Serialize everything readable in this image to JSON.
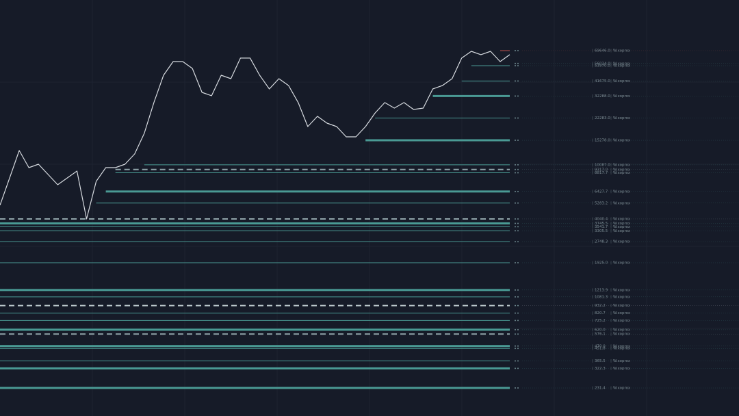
{
  "chart_data": {
    "type": "line",
    "log_scale": true,
    "ylim": [
      144,
      164000
    ],
    "color": "#d7dbe0",
    "level_color": "#4a9a94",
    "level_tag": "W.xoprox",
    "values": [
      5093,
      8091,
      12850,
      9616,
      10190,
      8570,
      7203,
      8091,
      9079,
      4037,
      7634,
      9616,
      9616,
      10190,
      12130,
      17170,
      28910,
      45920,
      57880,
      57880,
      51540,
      34390,
      32460,
      45920,
      43330,
      61370,
      61370,
      45920,
      36410,
      43330,
      38610,
      28910,
      19270,
      22910,
      20420,
      19270,
      16200,
      16200,
      19270,
      24270,
      28910,
      26340,
      28910,
      25740,
      26340,
      36410,
      38610,
      43330,
      61370,
      68870,
      65010,
      68870,
      57880,
      65010
    ],
    "levels": [
      {
        "value": 69646,
        "label": "69646.0",
        "start": 52,
        "style": "solid",
        "color": "#c0504d"
      },
      {
        "value": 56024,
        "label": "56024.0",
        "start": 53,
        "style": "solid",
        "color": "#4a9a94"
      },
      {
        "value": 53970,
        "label": "53970.0",
        "start": 49,
        "style": "solid",
        "color": "#4a9a94"
      },
      {
        "value": 41675,
        "label": "41675.0",
        "start": 48,
        "style": "solid",
        "color": "#4a9a94"
      },
      {
        "value": 32288,
        "label": "32288.0",
        "start": 45,
        "style": "thick",
        "color": "#4a9a94"
      },
      {
        "value": 22283,
        "label": "22283.0",
        "start": 39,
        "style": "solid",
        "color": "#4a9a94"
      },
      {
        "value": 15278,
        "label": "15278.0",
        "start": 38,
        "style": "thick",
        "color": "#4a9a94"
      },
      {
        "value": 10087,
        "label": "10087.0",
        "start": 15,
        "style": "solid",
        "color": "#4a9a94"
      },
      {
        "value": 9317,
        "label": "9317.0",
        "start": 12,
        "style": "dashed",
        "color": "#8fa3a8"
      },
      {
        "value": 8817.7,
        "label": "8817.7",
        "start": 12,
        "style": "solid",
        "color": "#4a9a94"
      },
      {
        "value": 6427.7,
        "label": "6427.7",
        "start": 11,
        "style": "thick",
        "color": "#4a9a94"
      },
      {
        "value": 5283.2,
        "label": "5283.2",
        "start": 10,
        "style": "solid",
        "color": "#4a9a94"
      },
      {
        "value": 4040.4,
        "label": "4040.4",
        "start": 0,
        "style": "dashed",
        "color": "#8fa3a8"
      },
      {
        "value": 3745.5,
        "label": "3745.5",
        "start": 0,
        "style": "thick",
        "color": "#4a9a94"
      },
      {
        "value": 3541.7,
        "label": "3541.7",
        "start": 0,
        "style": "solid",
        "color": "#4a9a94"
      },
      {
        "value": 3305.5,
        "label": "3305.5",
        "start": 0,
        "style": "solid",
        "color": "#4a9a94"
      },
      {
        "value": 2748.3,
        "label": "2748.3",
        "start": 0,
        "style": "solid",
        "color": "#4a9a94"
      },
      {
        "value": 1925,
        "label": "1925.0",
        "start": 0,
        "style": "solid",
        "color": "#4a9a94"
      },
      {
        "value": 1213.9,
        "label": "1213.9",
        "start": 0,
        "style": "thick",
        "color": "#4a9a94"
      },
      {
        "value": 1081.3,
        "label": "1081.3",
        "start": 0,
        "style": "solid",
        "color": "#4a9a94"
      },
      {
        "value": 932.2,
        "label": "932.2",
        "start": 0,
        "style": "dashed",
        "color": "#b8c4c8"
      },
      {
        "value": 820.7,
        "label": "820.7",
        "start": 0,
        "style": "solid",
        "color": "#4a9a94"
      },
      {
        "value": 725.2,
        "label": "725.2",
        "start": 0,
        "style": "solid",
        "color": "#4a9a94"
      },
      {
        "value": 620,
        "label": "620.0",
        "start": 0,
        "style": "thick",
        "color": "#4a9a94"
      },
      {
        "value": 576.1,
        "label": "576.1",
        "start": 0,
        "style": "dashed",
        "color": "#8fa3a8"
      },
      {
        "value": 470,
        "label": "470.0",
        "start": 0,
        "style": "thick",
        "color": "#4a9a94"
      },
      {
        "value": 451.8,
        "label": "451.8",
        "start": 0,
        "style": "solid",
        "color": "#4a9a94"
      },
      {
        "value": 365.5,
        "label": "365.5",
        "start": 0,
        "style": "solid",
        "color": "#4a9a94"
      },
      {
        "value": 322.3,
        "label": "322.3",
        "start": 0,
        "style": "thick",
        "color": "#4a9a94"
      },
      {
        "value": 231.4,
        "label": "231.4",
        "start": 0,
        "style": "thick",
        "color": "#4a9a94"
      }
    ]
  }
}
